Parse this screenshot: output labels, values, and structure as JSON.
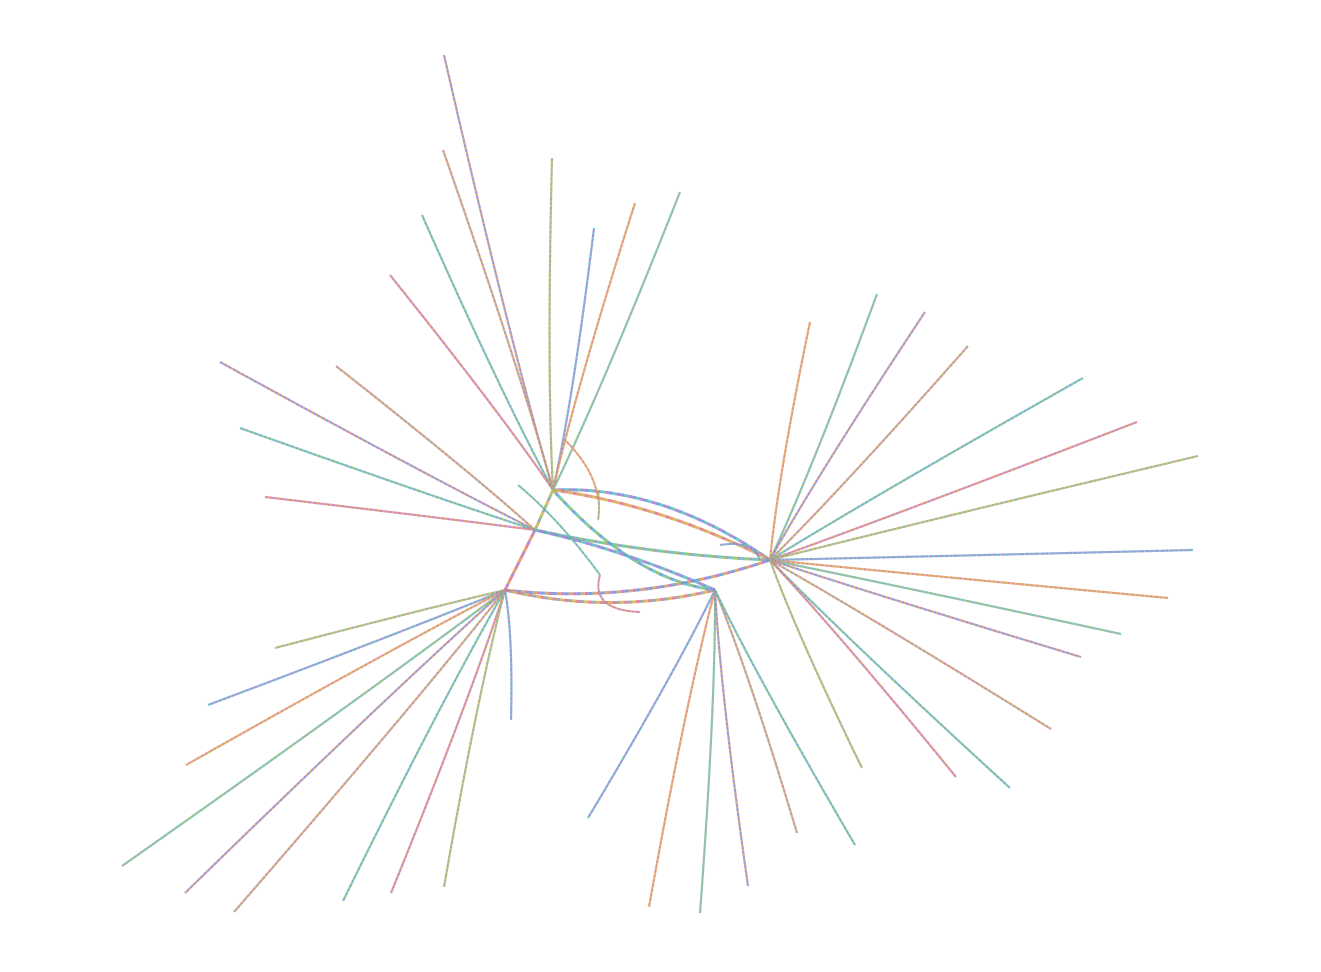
{
  "diagram": {
    "type": "network-bundled-edges",
    "background": "#ffffff",
    "palette": [
      "#6c9bd2",
      "#e07a8a",
      "#8cc26b",
      "#b07cd8",
      "#d4b45c",
      "#5fc3c0",
      "#e39a5f",
      "#9aa0a6"
    ],
    "edge_style": "dotted-multicolor",
    "hubs": 4
  }
}
